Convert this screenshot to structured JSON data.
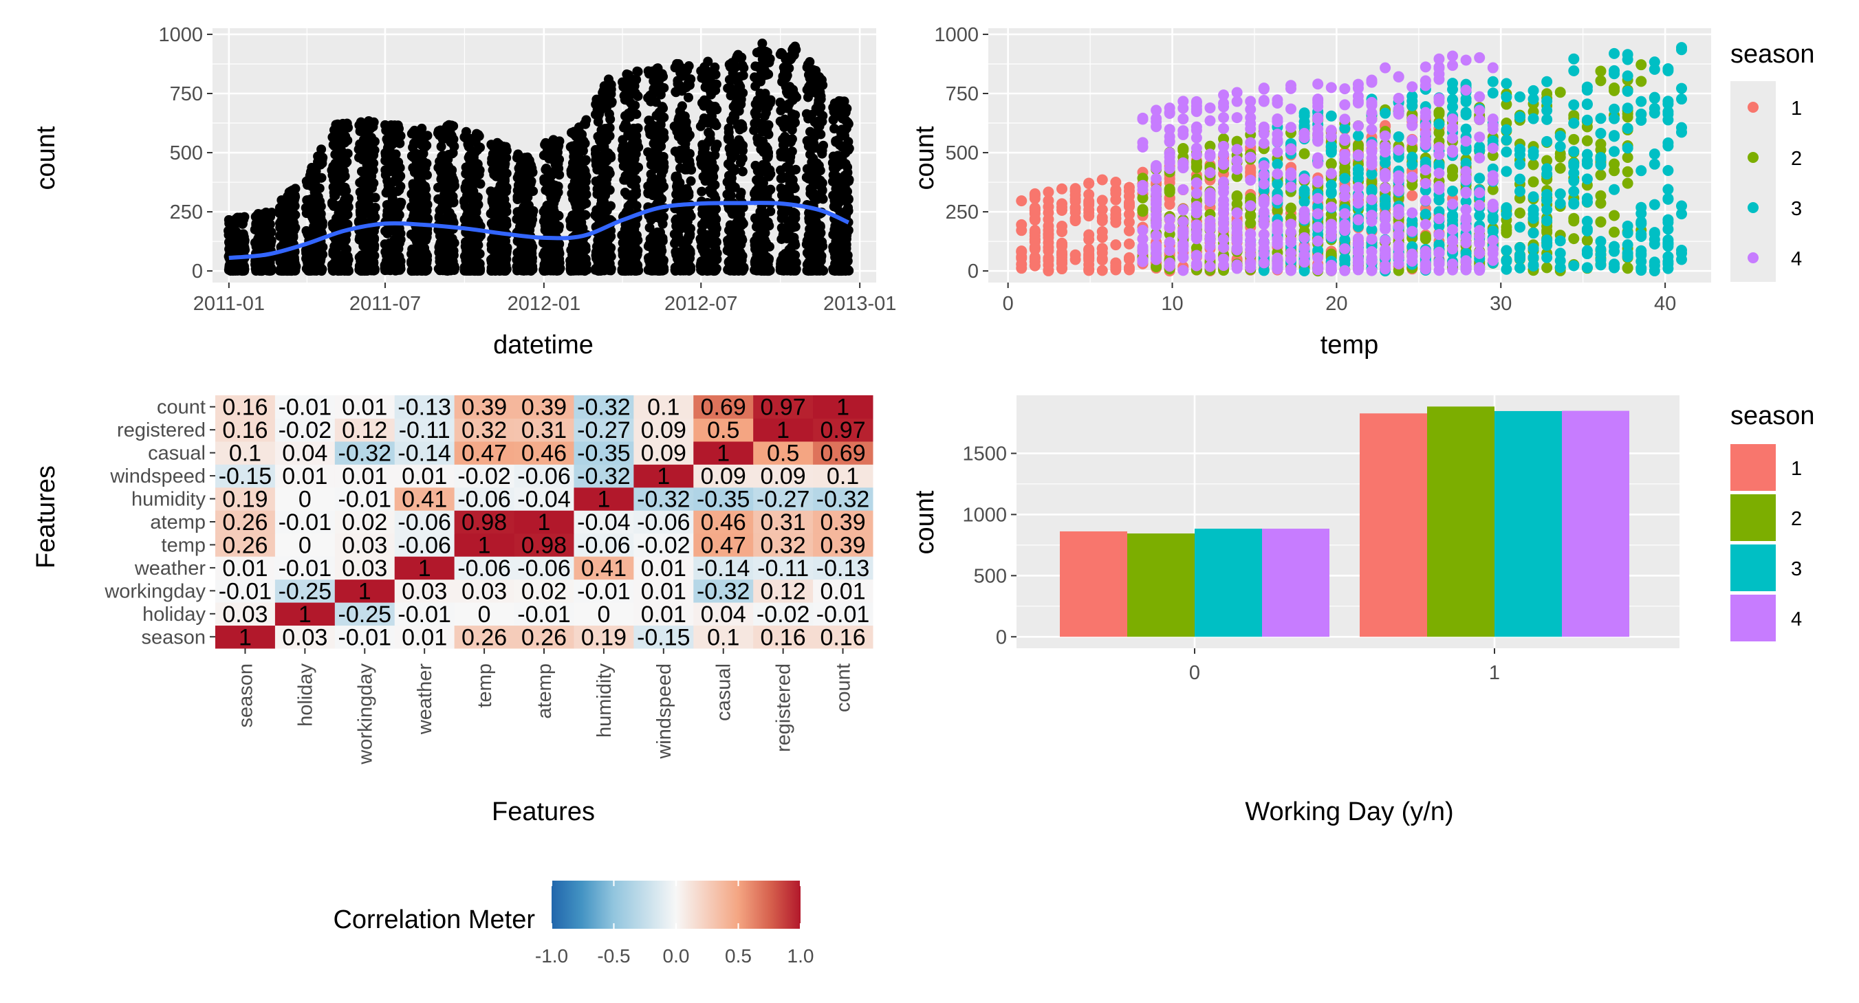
{
  "chart_data": [
    {
      "type": "scatter",
      "xlabel": "datetime",
      "ylabel": "count",
      "x_ticks": [
        "2011-01",
        "2011-07",
        "2012-01",
        "2012-07",
        "2013-01"
      ],
      "x_range": [
        "2010-12-13",
        "2013-01-20"
      ],
      "y_ticks": [
        0,
        250,
        500,
        750,
        1000
      ],
      "ylim": [
        -49,
        1026
      ],
      "point_color": "#000000",
      "smooth_color": "#3366FF",
      "smooth_line": {
        "x": [
          "2011-01-01",
          "2011-02-15",
          "2011-04-01",
          "2011-05-15",
          "2011-07-01",
          "2011-08-15",
          "2011-10-01",
          "2011-11-15",
          "2012-01-01",
          "2012-02-15",
          "2012-04-01",
          "2012-05-15",
          "2012-07-01",
          "2012-08-15",
          "2012-10-01",
          "2012-11-15",
          "2012-12-19"
        ],
        "y": [
          55,
          70,
          115,
          170,
          200,
          195,
          180,
          158,
          140,
          148,
          215,
          268,
          285,
          287,
          285,
          258,
          205
        ]
      },
      "band_upper_2011": [
        {
          "x": "2011-01-01",
          "y": 220
        },
        {
          "x": "2011-02-15",
          "y": 250
        },
        {
          "x": "2011-04-01",
          "y": 400
        },
        {
          "x": "2011-05-01",
          "y": 620
        },
        {
          "x": "2011-06-15",
          "y": 640
        },
        {
          "x": "2011-08-01",
          "y": 610
        },
        {
          "x": "2011-09-15",
          "y": 620
        },
        {
          "x": "2011-11-01",
          "y": 560
        },
        {
          "x": "2011-12-19",
          "y": 470
        }
      ],
      "band_upper_2012": [
        {
          "x": "2012-01-01",
          "y": 540
        },
        {
          "x": "2012-02-15",
          "y": 620
        },
        {
          "x": "2012-03-15",
          "y": 810
        },
        {
          "x": "2012-05-01",
          "y": 870
        },
        {
          "x": "2012-06-15",
          "y": 880
        },
        {
          "x": "2012-08-01",
          "y": 900
        },
        {
          "x": "2012-09-15",
          "y": 970
        },
        {
          "x": "2012-10-20",
          "y": 950
        },
        {
          "x": "2012-12-19",
          "y": 700
        }
      ]
    },
    {
      "type": "scatter",
      "xlabel": "temp",
      "ylabel": "count",
      "x_ticks": [
        0,
        10,
        20,
        30,
        40
      ],
      "xlim": [
        -1.2,
        42.8
      ],
      "y_ticks": [
        0,
        250,
        500,
        750,
        1000
      ],
      "ylim": [
        -49,
        1026
      ],
      "legend": {
        "title": "season",
        "position": "right",
        "entries": [
          {
            "label": "1",
            "color": "#F8766D"
          },
          {
            "label": "2",
            "color": "#7CAE00"
          },
          {
            "label": "3",
            "color": "#00BFC4"
          },
          {
            "label": "4",
            "color": "#C77CFF"
          }
        ]
      },
      "series_ranges": [
        {
          "name": "1",
          "temp": [
            0.8,
            27.0
          ],
          "count_max_at_low": 320,
          "count_max_at_high": 700
        },
        {
          "name": "2",
          "temp": [
            8.0,
            38.5
          ],
          "count_max_at_low": 500,
          "count_max_at_high": 880
        },
        {
          "name": "3",
          "temp": [
            15.0,
            41.0
          ],
          "count_max_at_low": 650,
          "count_max_at_high": 980
        },
        {
          "name": "4",
          "temp": [
            8.0,
            30.0
          ],
          "count_max_at_low": 700,
          "count_max_at_high": 950
        }
      ]
    },
    {
      "type": "heatmap",
      "xlabel": "Features",
      "ylabel": "Features",
      "features": [
        "season",
        "holiday",
        "workingday",
        "weather",
        "temp",
        "atemp",
        "humidity",
        "windspeed",
        "casual",
        "registered",
        "count"
      ],
      "matrix": [
        [
          "1",
          "0.03",
          "-0.01",
          "0.01",
          "0.26",
          "0.26",
          "0.19",
          "-0.15",
          "0.1",
          "0.16",
          "0.16"
        ],
        [
          "0.03",
          "1",
          "-0.25",
          "-0.01",
          "0",
          "-0.01",
          "0",
          "0.01",
          "0.04",
          "-0.02",
          "-0.01"
        ],
        [
          "-0.01",
          "-0.25",
          "1",
          "0.03",
          "0.03",
          "0.02",
          "-0.01",
          "0.01",
          "-0.32",
          "0.12",
          "0.01"
        ],
        [
          "0.01",
          "-0.01",
          "0.03",
          "1",
          "-0.06",
          "-0.06",
          "0.41",
          "0.01",
          "-0.14",
          "-0.11",
          "-0.13"
        ],
        [
          "0.26",
          "0",
          "0.03",
          "-0.06",
          "1",
          "0.98",
          "-0.06",
          "-0.02",
          "0.47",
          "0.32",
          "0.39"
        ],
        [
          "0.26",
          "-0.01",
          "0.02",
          "-0.06",
          "0.98",
          "1",
          "-0.04",
          "-0.06",
          "0.46",
          "0.31",
          "0.39"
        ],
        [
          "0.19",
          "0",
          "-0.01",
          "0.41",
          "-0.06",
          "-0.04",
          "1",
          "-0.32",
          "-0.35",
          "-0.27",
          "-0.32"
        ],
        [
          "-0.15",
          "0.01",
          "0.01",
          "0.01",
          "-0.02",
          "-0.06",
          "-0.32",
          "1",
          "0.09",
          "0.09",
          "0.1"
        ],
        [
          "0.1",
          "0.04",
          "-0.32",
          "-0.14",
          "0.47",
          "0.46",
          "-0.35",
          "0.09",
          "1",
          "0.5",
          "0.69"
        ],
        [
          "0.16",
          "-0.02",
          "0.12",
          "-0.11",
          "0.32",
          "0.31",
          "-0.27",
          "0.09",
          "0.5",
          "1",
          "0.97"
        ],
        [
          "0.16",
          "-0.01",
          "0.01",
          "-0.13",
          "0.39",
          "0.39",
          "-0.32",
          "0.1",
          "0.69",
          "0.97",
          "1"
        ]
      ],
      "legend": {
        "title": "Correlation Meter",
        "position": "bottom",
        "ticks": [
          "-1.0",
          "-0.5",
          "0.0",
          "0.5",
          "1.0"
        ],
        "colors": [
          "#2166AC",
          "#F7F7F7",
          "#B2182B"
        ]
      }
    },
    {
      "type": "bar",
      "xlabel": "Working Day (y/n)",
      "ylabel": "count",
      "categories": [
        "0",
        "1"
      ],
      "y_ticks": [
        0,
        500,
        1000,
        1500
      ],
      "ylim": [
        -94,
        1975
      ],
      "series": [
        {
          "name": "1",
          "color": "#F8766D",
          "values": [
            862,
            1827
          ]
        },
        {
          "name": "2",
          "color": "#7CAE00",
          "values": [
            845,
            1883
          ]
        },
        {
          "name": "3",
          "color": "#00BFC4",
          "values": [
            884,
            1846
          ]
        },
        {
          "name": "4",
          "color": "#C77CFF",
          "values": [
            884,
            1848
          ]
        }
      ],
      "legend": {
        "title": "season",
        "position": "right"
      }
    }
  ]
}
